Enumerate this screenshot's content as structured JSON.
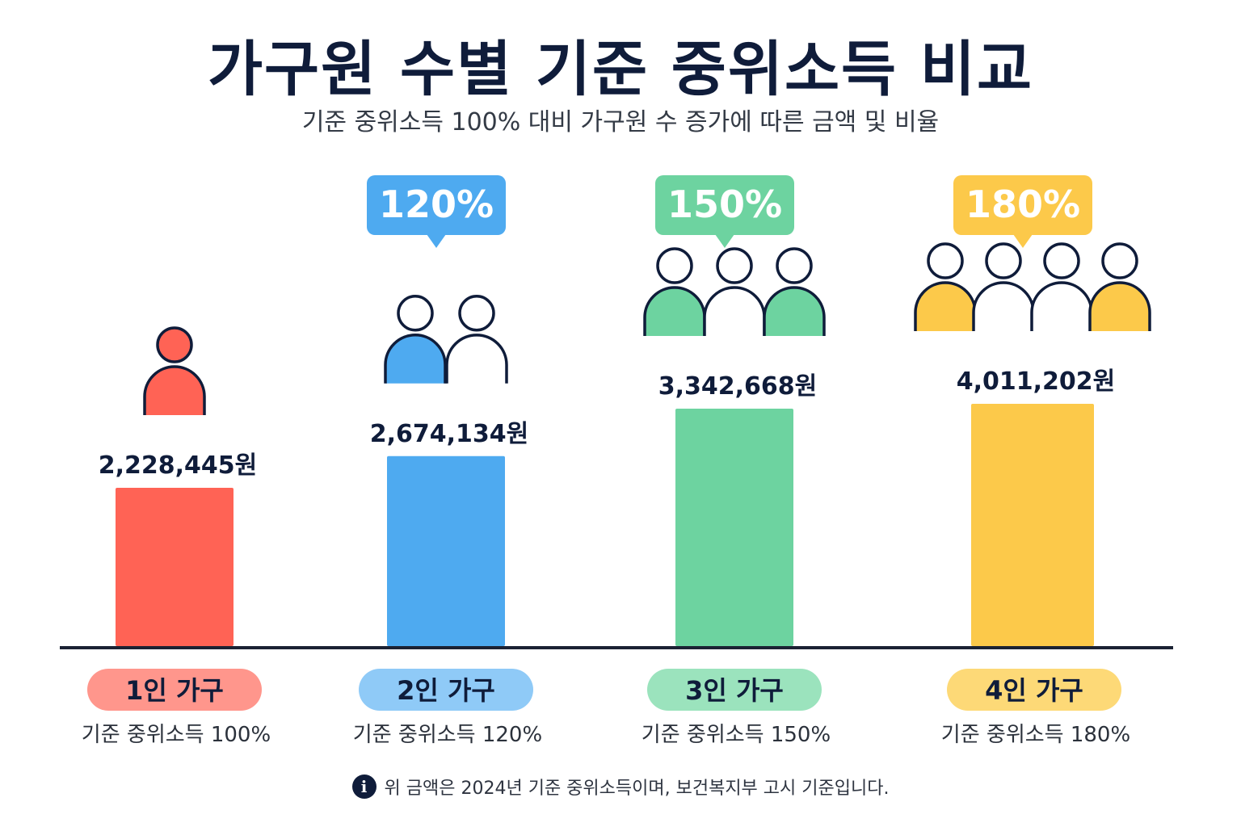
{
  "title": "가구원 수별 기준 중위소득 비교",
  "subtitle": "기준 중위소득 100% 대비 가구원 수 증가에 따른 금액 및 비율",
  "note": {
    "text": "위 금액은 2024년 기준 중위소득이며, 보건복지부 고시 기준입니다.",
    "icon": "info-icon"
  },
  "colors": {
    "title": "#0f1c3a",
    "axis": "#1b2233",
    "icon_stroke": "#0f1c3a"
  },
  "chart_data": {
    "type": "bar",
    "title": "가구원 수별 기준 중위소득 비교",
    "categories": [
      "1인 가구",
      "2인 가구",
      "3인 가구",
      "4인 가구"
    ],
    "values": [
      2228445,
      2674134,
      3342668,
      4011202
    ],
    "value_labels": [
      "2,228,445원",
      "2,674,134원",
      "3,342,668원",
      "4,011,202원"
    ],
    "ratio_labels": [
      "",
      "120%",
      "150%",
      "180%"
    ],
    "sub_labels": [
      "기준 중위소득 100%",
      "기준 중위소득 120%",
      "기준 중위소득 150%",
      "기준 중위소득 180%"
    ],
    "members": [
      1,
      2,
      3,
      4
    ],
    "colors": [
      "#ff6355",
      "#4eaaf0",
      "#6dd3a0",
      "#fcc94a"
    ],
    "pill_colors": [
      "#ff968c",
      "#8fcaf7",
      "#9be3bd",
      "#fdd977"
    ],
    "xlabel": "",
    "ylabel": "",
    "grid": false,
    "legend": "none"
  }
}
